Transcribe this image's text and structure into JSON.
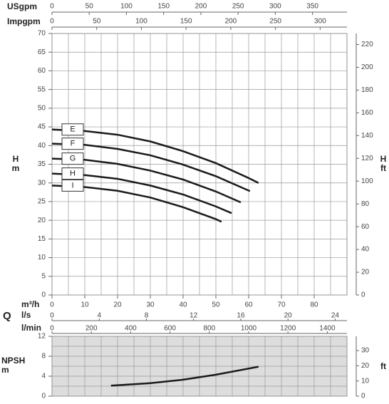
{
  "chart_data": [
    {
      "type": "line",
      "x_label": "m³/h",
      "xlim": [
        0,
        90
      ],
      "xticks": [
        0,
        10,
        20,
        30,
        40,
        50,
        60,
        70,
        80
      ],
      "xgrid": [
        0,
        5,
        10,
        15,
        20,
        25,
        30,
        35,
        40,
        45,
        50,
        55,
        60,
        65,
        70,
        75,
        80,
        85,
        90
      ],
      "y_label": [
        "H",
        "m"
      ],
      "ylim": [
        0,
        70
      ],
      "yticks": [
        0,
        5,
        10,
        15,
        20,
        25,
        30,
        35,
        40,
        45,
        50,
        55,
        60,
        65,
        70
      ],
      "y2_label": [
        "H",
        "ft"
      ],
      "y2lim": [
        0,
        229.7
      ],
      "y2ticks": [
        0,
        20,
        40,
        60,
        80,
        100,
        120,
        140,
        160,
        180,
        200,
        220
      ],
      "top_axes": [
        {
          "label": "USgpm",
          "xlim": [
            0,
            396.3
          ],
          "xticks": [
            0,
            50,
            100,
            150,
            200,
            250,
            300,
            350
          ]
        },
        {
          "label": "Impgpm",
          "xlim": [
            0,
            330
          ],
          "xticks": [
            0,
            50,
            100,
            150,
            200,
            250,
            300
          ]
        }
      ],
      "grid": true,
      "color": "#1a1a1a",
      "series": [
        {
          "name": "E",
          "x": [
            0,
            10,
            20,
            30,
            40,
            50,
            60,
            63
          ],
          "values": [
            44.3,
            43.9,
            42.9,
            41.1,
            38.5,
            35.3,
            31.3,
            30.0
          ]
        },
        {
          "name": "F",
          "x": [
            0,
            10,
            20,
            30,
            40,
            50,
            60.4
          ],
          "values": [
            40.5,
            40.2,
            39.1,
            37.4,
            34.9,
            31.8,
            27.8
          ]
        },
        {
          "name": "G",
          "x": [
            0,
            10,
            20,
            30,
            40,
            50,
            57.6
          ],
          "values": [
            36.5,
            36.2,
            35.1,
            33.3,
            30.9,
            27.7,
            24.8
          ]
        },
        {
          "name": "H",
          "x": [
            0,
            10,
            20,
            30,
            40,
            50,
            54.8
          ],
          "values": [
            32.5,
            32.1,
            31.1,
            29.3,
            26.9,
            23.7,
            21.9
          ]
        },
        {
          "name": "I",
          "x": [
            0,
            10,
            20,
            30,
            40,
            50,
            51.7
          ],
          "values": [
            29.3,
            28.9,
            27.9,
            26.1,
            23.5,
            20.3,
            19.6
          ]
        }
      ]
    },
    {
      "type": "line",
      "x_label": "Q",
      "bottom_axes": [
        {
          "label": "l/s",
          "xlim": [
            0,
            25
          ],
          "xticks": [
            0,
            4,
            8,
            12,
            16,
            20,
            24
          ]
        },
        {
          "label": "l/min",
          "xlim": [
            0,
            1500
          ],
          "xticks": [
            0,
            200,
            400,
            600,
            800,
            1000,
            1200,
            1400
          ]
        }
      ],
      "xlim": [
        0,
        90
      ],
      "xgrid": [
        0,
        5,
        10,
        15,
        20,
        25,
        30,
        35,
        40,
        45,
        50,
        55,
        60,
        65,
        70,
        75,
        80,
        85,
        90
      ],
      "y_label": [
        "NPSH",
        "m"
      ],
      "ylim": [
        0,
        12
      ],
      "yticks": [
        0,
        4,
        8,
        12
      ],
      "ygrid": [
        0,
        2,
        4,
        6,
        8,
        10,
        12
      ],
      "y2_label": "ft",
      "y2lim": [
        0,
        39.4
      ],
      "y2ticks": [
        0,
        10,
        20,
        30
      ],
      "grid": true,
      "color": "#1a1a1a",
      "series": [
        {
          "x": [
            18,
            30,
            40,
            50,
            63
          ],
          "values": [
            2.1,
            2.6,
            3.3,
            4.3,
            5.9
          ]
        }
      ]
    }
  ]
}
